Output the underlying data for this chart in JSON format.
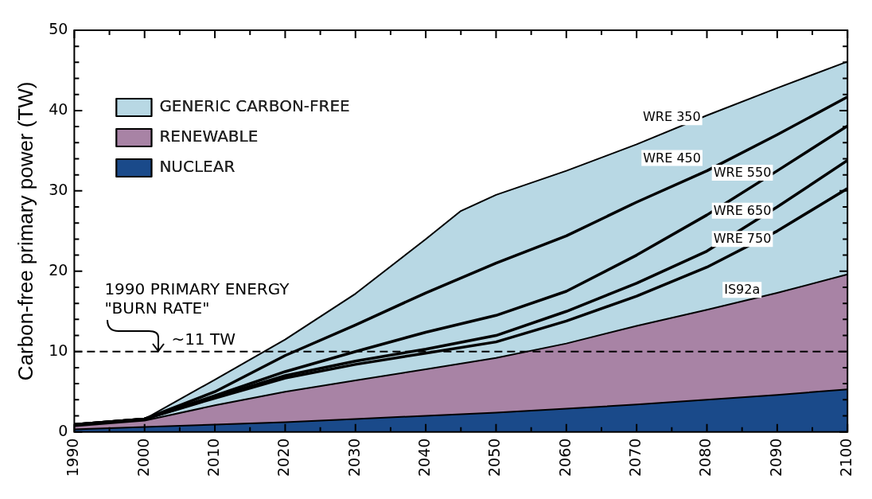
{
  "chart_data": {
    "type": "area",
    "ylabel": "Carbon-free primary power (TW)",
    "x": [
      1990,
      2000,
      2010,
      2020,
      2030,
      2040,
      2050,
      2060,
      2070,
      2080,
      2090,
      2100
    ],
    "xlim": [
      1990,
      2100
    ],
    "xticks": [
      1990,
      {
        "value": 1995,
        "label": null
      },
      2000,
      {
        "value": 2005,
        "label": null
      },
      2010,
      {
        "value": 2015,
        "label": null
      },
      2020,
      {
        "value": 2025,
        "label": null
      },
      2030,
      {
        "value": 2035,
        "label": null
      },
      2040,
      {
        "value": 2045,
        "label": null
      },
      2050,
      {
        "value": 2055,
        "label": null
      },
      2060,
      {
        "value": 2065,
        "label": null
      },
      2070,
      {
        "value": 2075,
        "label": null
      },
      2080,
      {
        "value": 2085,
        "label": null
      },
      2090,
      {
        "value": 2095,
        "label": null
      },
      2100
    ],
    "ylim": [
      0,
      50
    ],
    "yticks": [
      0,
      {
        "value": 2,
        "label": null
      },
      {
        "value": 4,
        "label": null
      },
      {
        "value": 6,
        "label": null
      },
      {
        "value": 8,
        "label": null
      },
      10,
      {
        "value": 12,
        "label": null
      },
      {
        "value": 14,
        "label": null
      },
      {
        "value": 16,
        "label": null
      },
      {
        "value": 18,
        "label": null
      },
      20,
      {
        "value": 22,
        "label": null
      },
      {
        "value": 24,
        "label": null
      },
      {
        "value": 26,
        "label": null
      },
      {
        "value": 28,
        "label": null
      },
      30,
      {
        "value": 32,
        "label": null
      },
      {
        "value": 34,
        "label": null
      },
      {
        "value": 36,
        "label": null
      },
      {
        "value": 38,
        "label": null
      },
      40,
      {
        "value": 42,
        "label": null
      },
      {
        "value": 44,
        "label": null
      },
      {
        "value": 46,
        "label": null
      },
      {
        "value": 48,
        "label": null
      },
      50
    ],
    "series": [
      {
        "name": "GENERIC CARBON-FREE",
        "color": "#b8d8e4",
        "x": [
          1990,
          2000,
          2010,
          2020,
          2030,
          2040,
          2045,
          2050,
          2060,
          2070,
          2080,
          2090,
          2100
        ],
        "values": [
          0.9,
          1.6,
          6.5,
          11.5,
          17.2,
          24.0,
          27.5,
          29.5,
          32.5,
          35.8,
          39.4,
          42.8,
          46.1
        ]
      },
      {
        "name": "RENEWABLE",
        "color": "#a883a5",
        "values": [
          0.7,
          1.4,
          3.3,
          5.0,
          6.4,
          7.8,
          9.2,
          11.0,
          13.2,
          15.2,
          17.3,
          19.6
        ]
      },
      {
        "name": "NUCLEAR",
        "color": "#1a4a8a",
        "values": [
          0.3,
          0.6,
          0.9,
          1.2,
          1.6,
          2.0,
          2.4,
          2.9,
          3.4,
          4.0,
          4.6,
          5.3
        ]
      },
      {
        "name": "WRE 450",
        "type": "line",
        "color": "#000000",
        "values": [
          0.9,
          1.6,
          5.0,
          9.5,
          13.3,
          17.3,
          21.0,
          24.4,
          28.6,
          32.5,
          37.0,
          41.7
        ]
      },
      {
        "name": "WRE 550",
        "type": "line",
        "color": "#000000",
        "values": [
          0.9,
          1.6,
          4.5,
          7.5,
          10.0,
          12.4,
          14.5,
          17.5,
          22.0,
          27.0,
          32.5,
          38.1
        ]
      },
      {
        "name": "WRE 650",
        "type": "line",
        "color": "#000000",
        "values": [
          0.9,
          1.6,
          4.3,
          7.0,
          8.8,
          10.3,
          12.0,
          15.0,
          18.5,
          22.5,
          28.0,
          33.8
        ]
      },
      {
        "name": "WRE 750",
        "type": "line",
        "color": "#000000",
        "values": [
          0.9,
          1.6,
          4.2,
          6.7,
          8.4,
          9.8,
          11.2,
          13.8,
          16.9,
          20.5,
          25.0,
          30.3
        ]
      }
    ],
    "ref_lines": [
      {
        "axis": "y",
        "value": 10,
        "label": "~11 TW",
        "color": "#000000",
        "line_style": "dashed"
      }
    ],
    "annotations": [
      "1990 PRIMARY ENERGY",
      {
        "text": "\"BURN RATE\"",
        "x": 2002,
        "y": 10
      },
      {
        "text": "WRE 350",
        "x": 2075,
        "y": 37.7
      },
      {
        "text": "IS92a",
        "x": 2085,
        "y": 16.2
      }
    ],
    "legend": "top left",
    "grid": false
  }
}
